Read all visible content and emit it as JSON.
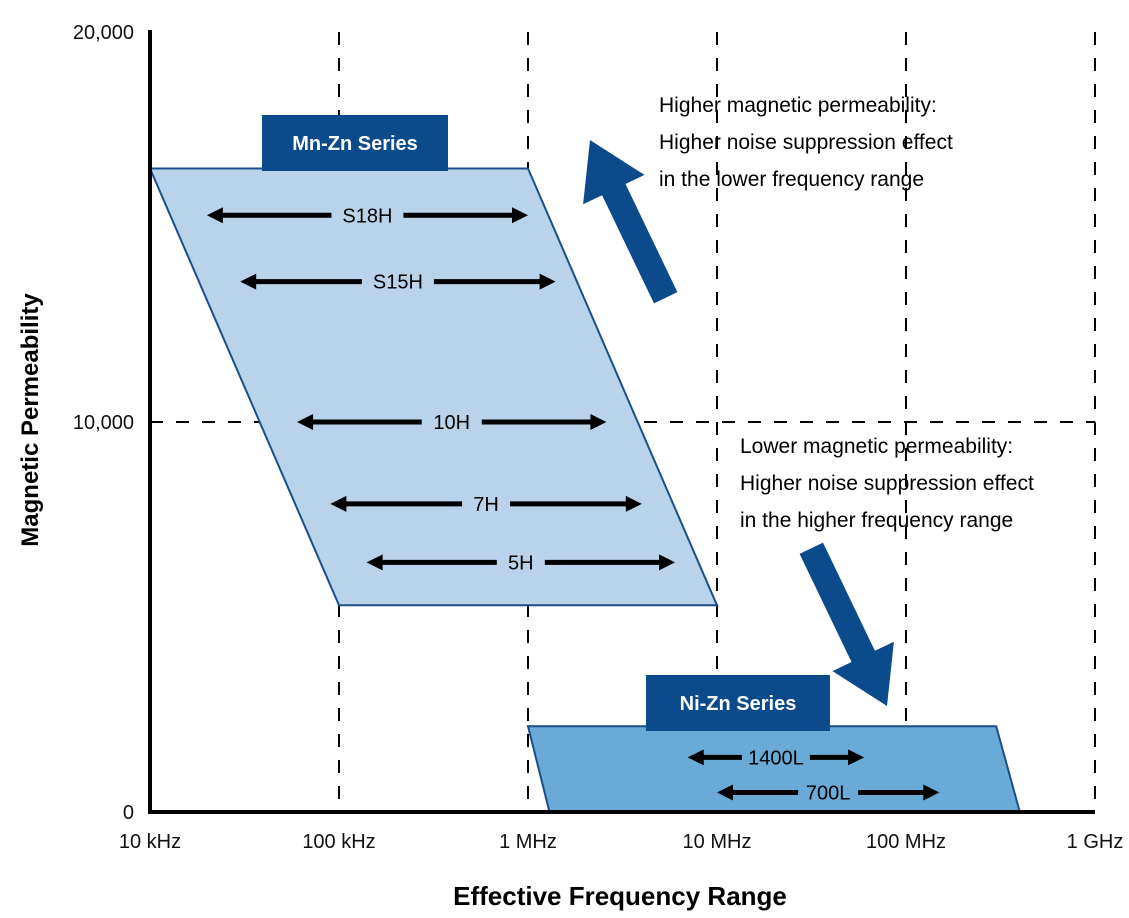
{
  "chart_data": {
    "type": "area",
    "xlabel": "Effective Frequency Range",
    "ylabel": "Magnetic Permeability",
    "x_scale": "log",
    "x_ticks": [
      "10 kHz",
      "100 kHz",
      "1 MHz",
      "10 MHz",
      "100 MHz",
      "1 GHz"
    ],
    "x_tick_values_hz": [
      10000,
      100000,
      1000000,
      10000000,
      100000000,
      1000000000
    ],
    "y_ticks": [
      "0",
      "10,000",
      "20,000"
    ],
    "y_tick_values": [
      0,
      10000,
      20000
    ],
    "ylim": [
      0,
      20000
    ],
    "grid": "dashed",
    "regions": [
      {
        "name": "Mn-Zn Series",
        "color": "#b8d3ea",
        "outline": "#1a4f8a",
        "polygon_hz_mu": [
          [
            10000,
            16500
          ],
          [
            1000000,
            16500
          ],
          [
            10000000,
            5300
          ],
          [
            100000,
            5300
          ]
        ],
        "materials": [
          {
            "name": "S18H",
            "mu": 15300,
            "f_min_hz": 20000,
            "f_max_hz": 1000000
          },
          {
            "name": "S15H",
            "mu": 13600,
            "f_min_hz": 30000,
            "f_max_hz": 1400000
          },
          {
            "name": "10H",
            "mu": 10000,
            "f_min_hz": 60000,
            "f_max_hz": 2600000
          },
          {
            "name": "7H",
            "mu": 7900,
            "f_min_hz": 90000,
            "f_max_hz": 4000000
          },
          {
            "name": "5H",
            "mu": 6400,
            "f_min_hz": 140000,
            "f_max_hz": 6000000
          }
        ]
      },
      {
        "name": "Ni-Zn Series",
        "color": "#6aaad6",
        "outline": "#1a4f8a",
        "polygon_hz_mu": [
          [
            1000000,
            2200
          ],
          [
            300000000,
            2200
          ],
          [
            400000000,
            0
          ],
          [
            1300000,
            0
          ]
        ],
        "materials": [
          {
            "name": "1400L",
            "mu": 1400,
            "f_min_hz": 7000000,
            "f_max_hz": 60000000
          },
          {
            "name": "700L",
            "mu": 500,
            "f_min_hz": 10000000,
            "f_max_hz": 150000000
          }
        ]
      }
    ],
    "annotations": [
      {
        "lines": [
          "Higher magnetic permeability:",
          "Higher noise suppression effect",
          "in the lower frequency range"
        ],
        "arrow": "up"
      },
      {
        "lines": [
          "Lower magnetic permeability:",
          "Higher noise suppression effect",
          "in the higher frequency range"
        ],
        "arrow": "down"
      }
    ],
    "colors": {
      "axis": "#000000",
      "grid": "#000000",
      "label_box": "#0b4a8b",
      "big_arrow": "#0b4a8b"
    }
  }
}
